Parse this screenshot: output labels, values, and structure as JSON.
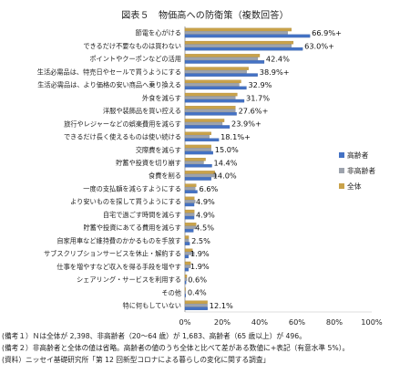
{
  "title": "図表５　物価高への防衛策（複数回答）",
  "chart_data": {
    "type": "bar",
    "orientation": "horizontal",
    "categories": [
      "節電を心がける",
      "できるだけ不要なものは買わない",
      "ポイントやクーポンなどの活用",
      "生活必需品は、特売日やセールで買うようにする",
      "生活必需品は、より価格の安い商品へ乗り換える",
      "外食を減らす",
      "洋服や装飾品を買い控える",
      "旅行やレジャーなどの娯楽費用を減らす",
      "できるだけ長く使えるものは使い続ける",
      "交際費を減らす",
      "貯蓄や投資を切り崩す",
      "食費を削る",
      "一度の支払額を減らすようにする",
      "より安いものを探して買うようにする",
      "自宅で過ごす時間を減らす",
      "貯蓄や投資にあてる費用を減らす",
      "自家用車など維持費のかかるものを手放す",
      "サブスクリプションサービスを休止・解約する",
      "仕事を増やすなど収入を得る手段を増やす",
      "シェアリング・サービスを利用する",
      "その他",
      "特に何もしていない"
    ],
    "series": [
      {
        "name": "高齢者",
        "color": "#4472c4",
        "values": [
          66.9,
          63.0,
          42.4,
          38.9,
          32.9,
          31.7,
          27.6,
          23.9,
          18.1,
          15.0,
          14.4,
          14.0,
          6.6,
          4.9,
          4.9,
          4.5,
          2.5,
          1.9,
          1.9,
          0.6,
          0.4,
          12.1
        ]
      },
      {
        "name": "非高齢者",
        "color": "#9da3ad",
        "values": [
          55.0,
          57.0,
          39.0,
          33.0,
          29.0,
          27.0,
          27.0,
          20.0,
          13.0,
          14.0,
          10.0,
          17.0,
          5.5,
          5.5,
          5.0,
          6.0,
          2.0,
          5.0,
          3.0,
          1.0,
          0.3,
          12.0
        ]
      },
      {
        "name": "全体",
        "color": "#c9a24a",
        "values": [
          57.0,
          58.0,
          40.0,
          34.0,
          30.0,
          28.0,
          27.0,
          21.0,
          14.0,
          14.0,
          11.0,
          16.0,
          6.0,
          5.0,
          5.0,
          6.0,
          2.0,
          4.0,
          3.0,
          1.0,
          0.3,
          12.0
        ]
      }
    ],
    "data_labels": [
      "66.9%+",
      "63.0%+",
      "42.4%",
      "38.9%+",
      "32.9%",
      "31.7%",
      "27.6%+",
      "23.9%+",
      "18.1%+",
      "15.0%",
      "14.4%",
      "14.0%",
      "6.6%",
      "4.9%",
      "4.9%",
      "4.5%",
      "2.5%",
      "1.9%",
      "1.9%",
      "0.6%",
      "0.4%",
      "12.1%"
    ],
    "xlim": [
      0,
      100
    ],
    "xticks": [
      "0%",
      "20%",
      "40%",
      "60%",
      "80%",
      "100%"
    ],
    "grid": false,
    "legend": {
      "placement": "right",
      "entries": [
        "高齢者",
        "非高齢者",
        "全体"
      ]
    }
  },
  "notes": [
    "(備考１）Ｎは全体が 2,398、非高齢者（20～64 歳）が 1,683、高齢者（65 歳以上）が 496。",
    "(備考２）非高齢者と全体の値は省略。高齢者の値のうち全体と比べて差がある数値に+表記（有意水準 5%）。",
    "(資料）ニッセイ基礎研究所「第 12 回新型コロナによる暮らしの変化に関する調査」"
  ]
}
